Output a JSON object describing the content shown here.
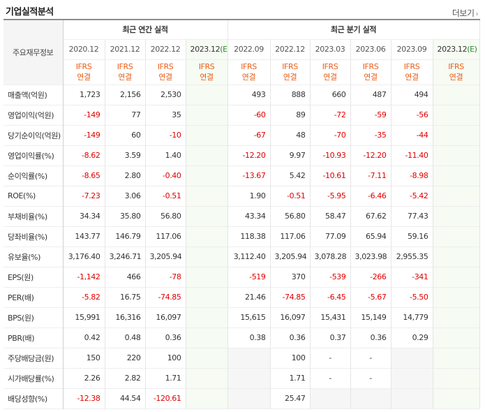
{
  "header": {
    "title": "기업실적분석",
    "more_label": "더보기"
  },
  "table": {
    "row_header": "주요재무정보",
    "group_annual": "최근 연간 실적",
    "group_quarter": "최근 분기 실적",
    "annual_periods": [
      "2020.12",
      "2021.12",
      "2022.12",
      "2023.12"
    ],
    "annual_estimate_mark": "(E)",
    "quarter_periods": [
      "2022.09",
      "2022.12",
      "2023.03",
      "2023.06",
      "2023.09",
      "2023.12"
    ],
    "quarter_estimate_mark": "(E)",
    "acct_line1": "IFRS",
    "acct_line2": "연결",
    "rows": [
      {
        "label": "매출액(억원)",
        "annual": [
          "1,723",
          "2,156",
          "2,530",
          ""
        ],
        "quarter": [
          "493",
          "888",
          "660",
          "487",
          "494",
          ""
        ]
      },
      {
        "label": "영업이익(억원)",
        "annual": [
          "-149",
          "77",
          "35",
          ""
        ],
        "quarter": [
          "-60",
          "89",
          "-72",
          "-59",
          "-56",
          ""
        ]
      },
      {
        "label": "당기순이익(억원)",
        "annual": [
          "-149",
          "60",
          "-10",
          ""
        ],
        "quarter": [
          "-67",
          "48",
          "-70",
          "-35",
          "-44",
          ""
        ]
      },
      {
        "label": "영업이익률(%)",
        "annual": [
          "-8.62",
          "3.59",
          "1.40",
          ""
        ],
        "quarter": [
          "-12.20",
          "9.97",
          "-10.93",
          "-12.20",
          "-11.40",
          ""
        ]
      },
      {
        "label": "순이익률(%)",
        "annual": [
          "-8.65",
          "2.80",
          "-0.40",
          ""
        ],
        "quarter": [
          "-13.67",
          "5.42",
          "-10.61",
          "-7.11",
          "-8.98",
          ""
        ]
      },
      {
        "label": "ROE(%)",
        "annual": [
          "-7.23",
          "3.06",
          "-0.51",
          ""
        ],
        "quarter": [
          "1.90",
          "-0.51",
          "-5.95",
          "-6.46",
          "-5.42",
          ""
        ]
      },
      {
        "label": "부채비율(%)",
        "annual": [
          "34.34",
          "35.80",
          "56.80",
          ""
        ],
        "quarter": [
          "43.34",
          "56.80",
          "58.47",
          "67.62",
          "77.43",
          ""
        ]
      },
      {
        "label": "당좌비율(%)",
        "annual": [
          "143.77",
          "146.79",
          "117.06",
          ""
        ],
        "quarter": [
          "118.38",
          "117.06",
          "77.09",
          "65.94",
          "59.16",
          ""
        ]
      },
      {
        "label": "유보율(%)",
        "annual": [
          "3,176.40",
          "3,246.71",
          "3,205.94",
          ""
        ],
        "quarter": [
          "3,112.40",
          "3,205.94",
          "3,078.28",
          "3,023.98",
          "2,955.35",
          ""
        ]
      },
      {
        "label": "EPS(원)",
        "annual": [
          "-1,142",
          "466",
          "-78",
          ""
        ],
        "quarter": [
          "-519",
          "370",
          "-539",
          "-266",
          "-341",
          ""
        ]
      },
      {
        "label": "PER(배)",
        "annual": [
          "-5.82",
          "16.75",
          "-74.85",
          ""
        ],
        "quarter": [
          "21.46",
          "-74.85",
          "-6.45",
          "-5.67",
          "-5.50",
          ""
        ]
      },
      {
        "label": "BPS(원)",
        "annual": [
          "15,991",
          "16,316",
          "16,097",
          ""
        ],
        "quarter": [
          "15,615",
          "16,097",
          "15,431",
          "15,149",
          "14,779",
          ""
        ]
      },
      {
        "label": "PBR(배)",
        "annual": [
          "0.42",
          "0.48",
          "0.36",
          ""
        ],
        "quarter": [
          "0.38",
          "0.36",
          "0.37",
          "0.36",
          "0.29",
          ""
        ]
      },
      {
        "label": "주당배당금(원)",
        "annual": [
          "150",
          "220",
          "100",
          ""
        ],
        "quarter": [
          "",
          "100",
          "-",
          "-",
          "",
          ""
        ]
      },
      {
        "label": "시가배당률(%)",
        "annual": [
          "2.26",
          "2.82",
          "1.71",
          ""
        ],
        "quarter": [
          "",
          "1.71",
          "-",
          "-",
          "",
          ""
        ]
      },
      {
        "label": "배당성향(%)",
        "annual": [
          "-12.38",
          "44.54",
          "-120.61",
          ""
        ],
        "quarter": [
          "",
          "25.47",
          "",
          "",
          "",
          ""
        ]
      }
    ],
    "shaded_quarter_cells": {
      "13": [
        0,
        4
      ],
      "14": [
        0,
        4
      ],
      "15": [
        0,
        2,
        3,
        4
      ]
    }
  },
  "colors": {
    "negative": "#e00000",
    "acct_text": "#e8601b",
    "estimate_bg": "#f6fbf3",
    "estimate_mark": "#2a8a2a"
  }
}
